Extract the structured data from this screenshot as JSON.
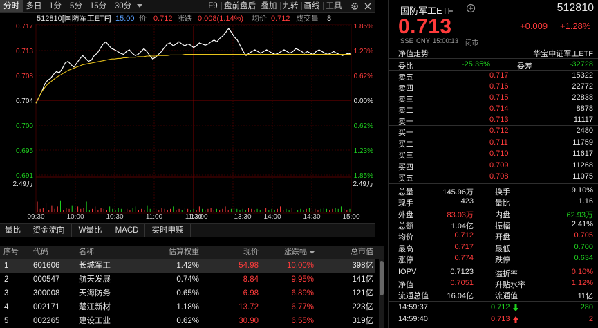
{
  "toolbar": {
    "left_tabs": [
      "分时",
      "多日",
      "1分",
      "5分",
      "15分",
      "30分"
    ],
    "right_tabs": [
      "F9",
      "盘前盘后",
      "叠加",
      "九转",
      "画线",
      "工具"
    ],
    "settings_icon": "gear-icon",
    "dropdown_icon": "chevron-down-icon"
  },
  "chart_info": {
    "code_name": "512810[国防军工ETF]",
    "time": "15:00",
    "price_label": "价",
    "price": "0.712",
    "change_label": "涨跌",
    "change": "0.008(1.14%)",
    "avg_label": "均价",
    "avg": "0.712",
    "vol_label": "成交量",
    "vol": "8",
    "gear_icon": "gear-icon",
    "close_icon": "close-icon"
  },
  "chart_data": {
    "type": "line",
    "x_ticks": [
      "09:30",
      "10:30",
      "11:30",
      "13:30",
      "14:30",
      "15:00"
    ],
    "x_minor_ticks": [
      "10:00",
      "11:00",
      "13:00",
      "14:00"
    ],
    "y_left_ticks": [
      "0.717",
      "0.713",
      "0.708",
      "0.704",
      "0.700",
      "0.695",
      "0.691"
    ],
    "y_right_ticks": [
      "1.85%",
      "1.23%",
      "0.62%",
      "0.00%",
      "0.62%",
      "1.23%",
      "1.85%"
    ],
    "y_left_colors": [
      "red",
      "red",
      "red",
      "white",
      "green",
      "green",
      "green"
    ],
    "ylim": [
      0.691,
      0.717
    ],
    "prev_close": 0.704,
    "volume_tick": "2.49万",
    "volume_tick_right": "2.49万",
    "series": [
      {
        "color": "#ffffff",
        "values": [
          0.7035,
          0.7045,
          0.7055,
          0.7068,
          0.7075,
          0.7078,
          0.7085,
          0.709,
          0.7088,
          0.7095,
          0.7105,
          0.7108,
          0.7102,
          0.7098,
          0.7105,
          0.7112,
          0.7118,
          0.7113,
          0.7108,
          0.711,
          0.7118,
          0.7122,
          0.713,
          0.7138,
          0.7142,
          0.7135,
          0.713,
          0.7128,
          0.7125,
          0.7122,
          0.712,
          0.7125,
          0.7128,
          0.7122,
          0.7118,
          0.712,
          0.7125,
          0.713,
          0.7125,
          0.7118,
          0.7112,
          0.7115,
          0.712,
          0.7125,
          0.7132,
          0.7138,
          0.714,
          0.7135,
          0.7138,
          0.7142,
          0.7138,
          0.7135,
          0.7138,
          0.7136,
          0.7132,
          0.7135,
          0.714,
          0.7138,
          0.7136,
          0.7138,
          0.7142,
          0.7145,
          0.7142,
          0.7148,
          0.7152,
          0.7158,
          0.7165,
          0.7158,
          0.715,
          0.7145,
          0.7135,
          0.7125,
          0.7118,
          0.7122,
          0.7125,
          0.7128,
          0.7125,
          0.7122,
          0.7125,
          0.7128,
          0.7125,
          0.7122,
          0.712,
          0.7122,
          0.7125,
          0.7128,
          0.7125,
          0.7122,
          0.7125,
          0.713,
          0.7128,
          0.7125,
          0.7122,
          0.7125,
          0.7122,
          0.712,
          0.7125,
          0.7128,
          0.7125,
          0.7122,
          0.712,
          0.7122,
          0.7125,
          0.7122,
          0.712,
          0.7118,
          0.712,
          0.7122,
          0.712
        ]
      },
      {
        "color": "#e8c21a",
        "values": [
          0.7035,
          0.7045,
          0.7055,
          0.7062,
          0.7068,
          0.7072,
          0.7076,
          0.708,
          0.7083,
          0.7086,
          0.7089,
          0.7092,
          0.7094,
          0.7096,
          0.7098,
          0.71,
          0.7102,
          0.7103,
          0.7104,
          0.7105,
          0.7106,
          0.7107,
          0.7108,
          0.7109,
          0.711,
          0.7111,
          0.7112,
          0.7112,
          0.7113,
          0.7113,
          0.7114,
          0.7114,
          0.7115,
          0.7115,
          0.7115,
          0.7116,
          0.7116,
          0.7116,
          0.7117,
          0.7117,
          0.7117,
          0.7117,
          0.7118,
          0.7118,
          0.7118,
          0.7118,
          0.7119,
          0.7119,
          0.7119,
          0.7119,
          0.7119,
          0.712,
          0.712,
          0.712,
          0.712,
          0.712,
          0.712,
          0.712,
          0.712,
          0.712,
          0.712,
          0.712,
          0.712,
          0.712,
          0.712,
          0.712,
          0.712,
          0.712,
          0.712,
          0.712,
          0.712,
          0.712,
          0.712,
          0.712,
          0.712,
          0.712,
          0.712,
          0.712,
          0.712,
          0.712,
          0.712,
          0.712,
          0.712,
          0.712,
          0.712,
          0.712,
          0.712,
          0.712,
          0.712,
          0.712,
          0.712,
          0.712,
          0.712,
          0.712,
          0.712,
          0.712,
          0.712,
          0.712,
          0.712,
          0.712,
          0.712,
          0.712,
          0.712,
          0.712,
          0.712,
          0.712,
          0.712,
          0.712,
          0.712
        ]
      }
    ],
    "volume_scale_max": 2.49,
    "volume_values": [
      0.9,
      0.3,
      0.4,
      0.8,
      0.2,
      0.6,
      0.3,
      0.5,
      1.0,
      0.2,
      0.4,
      0.3,
      0.6,
      0.2,
      0.5,
      0.3,
      0.4,
      0.9,
      0.2,
      0.3,
      0.5,
      0.2,
      0.4,
      0.3,
      0.2,
      0.5,
      0.3,
      0.2,
      0.4,
      0.3,
      0.2,
      0.3,
      0.2,
      0.4,
      0.5,
      0.2,
      0.3,
      0.2,
      0.6,
      0.3,
      0.2,
      0.3,
      0.2,
      0.4,
      0.3,
      0.2,
      0.3,
      0.5,
      0.2,
      0.3,
      0.2,
      0.4,
      0.3,
      0.2,
      0.3,
      0.2,
      0.5,
      0.3,
      0.2,
      0.3,
      0.4,
      0.2,
      0.3,
      0.2,
      0.3,
      0.5,
      0.2,
      0.3,
      0.4,
      0.3,
      0.2,
      0.3,
      0.2,
      0.4,
      0.3,
      0.2,
      0.3,
      0.2,
      0.3,
      0.4,
      0.2,
      0.3,
      0.2,
      0.3,
      0.5,
      0.2,
      0.3,
      0.2,
      0.4,
      0.3,
      0.2,
      0.3,
      0.2,
      0.3,
      0.4,
      0.2,
      0.3,
      0.2,
      0.3,
      0.4,
      0.3,
      0.2,
      0.3,
      0.4,
      0.3,
      0.5,
      0.3,
      0.2,
      0.3
    ]
  },
  "indicator_tabs": [
    "量比",
    "资金流向",
    "W量比",
    "MACD",
    "实时申赎"
  ],
  "table": {
    "headers": [
      "序号",
      "代码",
      "名称",
      "估算权重",
      "现价",
      "涨跌幅",
      "总市值"
    ],
    "sort_icon": "sort-desc-icon",
    "rows": [
      {
        "no": "1",
        "code": "601606",
        "name": "长城军工",
        "weight": "1.42%",
        "price": "54.98",
        "pct": "10.00%",
        "cap": "398亿"
      },
      {
        "no": "2",
        "code": "000547",
        "name": "航天发展",
        "weight": "0.74%",
        "price": "8.84",
        "pct": "9.95%",
        "cap": "141亿"
      },
      {
        "no": "3",
        "code": "300008",
        "name": "天海防务",
        "weight": "0.65%",
        "price": "6.98",
        "pct": "6.89%",
        "cap": "121亿"
      },
      {
        "no": "4",
        "code": "002171",
        "name": "楚江新材",
        "weight": "1.18%",
        "price": "13.72",
        "pct": "6.77%",
        "cap": "223亿"
      },
      {
        "no": "5",
        "code": "002265",
        "name": "建设工业",
        "weight": "0.62%",
        "price": "30.90",
        "pct": "6.55%",
        "cap": "319亿"
      }
    ]
  },
  "quote": {
    "name": "国防军工ETF",
    "code": "512810",
    "price": "0.713",
    "change": "+0.009",
    "change_pct": "+1.28%",
    "meta": [
      "SSE",
      "CNY",
      "15:00:13",
      "闭市"
    ],
    "nav_label": "净值走势",
    "index_label": "华宝中证军工ETF",
    "ratio_label": "委比",
    "ratio": "-25.35%",
    "diff_label": "委差",
    "diff": "-32728",
    "asks": [
      {
        "label": "卖五",
        "price": "0.717",
        "vol": "15322"
      },
      {
        "label": "卖四",
        "price": "0.716",
        "vol": "22772"
      },
      {
        "label": "卖三",
        "price": "0.715",
        "vol": "22838"
      },
      {
        "label": "卖二",
        "price": "0.714",
        "vol": "8878"
      },
      {
        "label": "卖一",
        "price": "0.713",
        "vol": "11117"
      }
    ],
    "bids": [
      {
        "label": "买一",
        "price": "0.712",
        "vol": "2480"
      },
      {
        "label": "买二",
        "price": "0.711",
        "vol": "11759"
      },
      {
        "label": "买三",
        "price": "0.710",
        "vol": "11617"
      },
      {
        "label": "买四",
        "price": "0.709",
        "vol": "11268"
      },
      {
        "label": "买五",
        "price": "0.708",
        "vol": "11075"
      }
    ],
    "stats": [
      {
        "l1": "总量",
        "v1": "145.96万",
        "c1": "white",
        "l2": "换手",
        "v2": "9.10%",
        "c2": "white"
      },
      {
        "l1": "现手",
        "v1": "423",
        "c1": "white",
        "l2": "量比",
        "v2": "1.16",
        "c2": "white"
      },
      {
        "l1": "外盘",
        "v1": "83.03万",
        "c1": "red",
        "l2": "内盘",
        "v2": "62.93万",
        "c2": "green"
      },
      {
        "l1": "总额",
        "v1": "1.04亿",
        "c1": "white",
        "l2": "振幅",
        "v2": "2.41%",
        "c2": "white"
      },
      {
        "l1": "均价",
        "v1": "0.712",
        "c1": "red",
        "l2": "开盘",
        "v2": "0.705",
        "c2": "red"
      },
      {
        "l1": "最高",
        "v1": "0.717",
        "c1": "red",
        "l2": "最低",
        "v2": "0.700",
        "c2": "green"
      },
      {
        "l1": "涨停",
        "v1": "0.774",
        "c1": "red",
        "l2": "跌停",
        "v2": "0.634",
        "c2": "green"
      }
    ],
    "iopv": [
      {
        "l1": "IOPV",
        "v1": "0.7123",
        "c1": "white",
        "l2": "溢折率",
        "v2": "0.10%",
        "c2": "red"
      },
      {
        "l1": "净值",
        "v1": "0.7051",
        "c1": "red",
        "l2": "升贴水率",
        "v2": "1.12%",
        "c2": "red"
      },
      {
        "l1": "流通总值",
        "v1": "16.04亿",
        "c1": "white",
        "l2": "流通值",
        "v2": "11亿",
        "c2": "white"
      }
    ],
    "ticks": [
      {
        "time": "14:59:37",
        "price": "0.712",
        "dir": "down",
        "vol": "280",
        "color": "green"
      },
      {
        "time": "14:59:40",
        "price": "0.713",
        "dir": "up",
        "vol": "2",
        "color": "red"
      }
    ],
    "star_icon": "star-icon",
    "circle_icon": "circle-icon"
  }
}
